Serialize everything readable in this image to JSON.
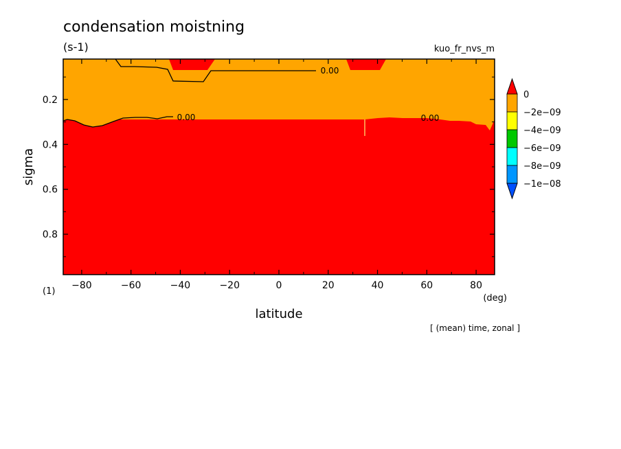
{
  "chart_data": {
    "type": "heatmap",
    "title": "condensation moistning",
    "units": "(s-1)",
    "variable": "kuo_fr_nvs_m",
    "xlabel": "latitude",
    "ylabel": "sigma",
    "x_unit": "(deg)",
    "y_unit": "(1)",
    "note": "[ (mean) time, zonal ]",
    "xlim": [
      -87.5,
      87.5
    ],
    "ylim": [
      0.02,
      0.98
    ],
    "y_inverted": true,
    "x_ticks": [
      -80,
      -60,
      -40,
      -20,
      0,
      20,
      40,
      60,
      80
    ],
    "y_ticks": [
      0.2,
      0.4,
      0.6,
      0.8
    ],
    "contour_labels": [
      {
        "text": "0.00",
        "x": 18,
        "y": 0.07
      },
      {
        "text": "0.00",
        "x": -39,
        "y": 0.31
      },
      {
        "text": "0.00",
        "x": 62,
        "y": 0.31
      }
    ],
    "regions": [
      {
        "level": "0",
        "description": "lower troposphere",
        "sigma_top": 0.29,
        "sigma_bottom": 0.98
      },
      {
        "level": "0",
        "description": "upper cap near -37",
        "lat_range": [
          -44,
          -28
        ],
        "sigma_range": [
          0.02,
          0.07
        ]
      },
      {
        "level": "0",
        "description": "upper cap near 35",
        "lat_range": [
          29,
          42
        ],
        "sigma_range": [
          0.02,
          0.07
        ]
      },
      {
        "level": "-2e-09",
        "description": "upper layer",
        "sigma_range": [
          0.02,
          0.3
        ]
      }
    ],
    "colorbar": {
      "levels": [
        "0",
        "-2e-09",
        "-4e-09",
        "-6e-09",
        "-8e-09",
        "-1e-08"
      ],
      "colors": [
        "#ff0000",
        "#ffa500",
        "#ffff00",
        "#00c800",
        "#00ffff",
        "#0096ff",
        "#0050ff"
      ]
    }
  }
}
